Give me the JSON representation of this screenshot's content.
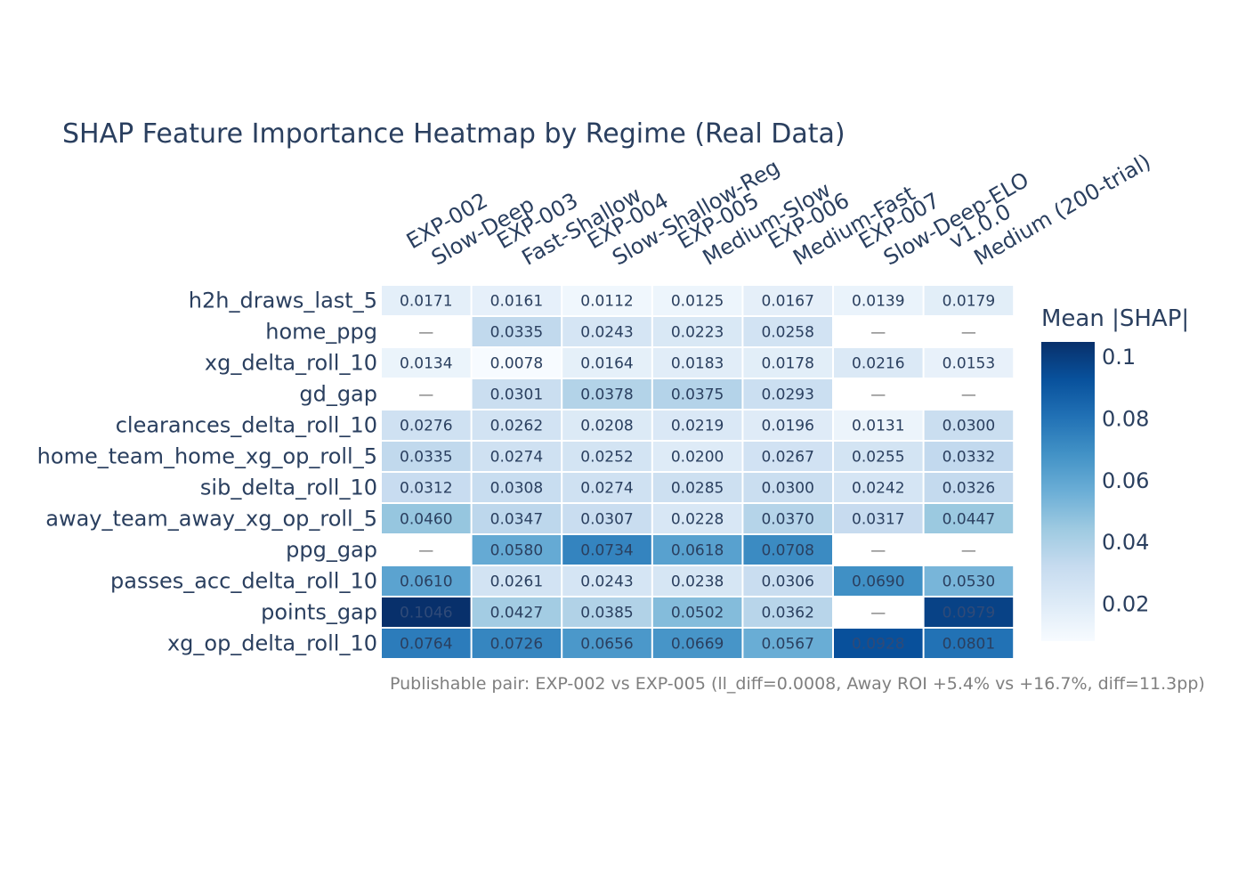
{
  "chart_data": {
    "type": "heatmap",
    "title": "SHAP Feature Importance Heatmap by Regime (Real Data)",
    "columns": [
      {
        "id": "EXP-002",
        "label": "Slow-Deep"
      },
      {
        "id": "EXP-003",
        "label": "Fast-Shallow"
      },
      {
        "id": "EXP-004",
        "label": "Slow-Shallow-Reg"
      },
      {
        "id": "EXP-005",
        "label": "Medium-Slow"
      },
      {
        "id": "EXP-006",
        "label": "Medium-Fast"
      },
      {
        "id": "EXP-007",
        "label": "Slow-Deep-ELO"
      },
      {
        "id": "v1.0.0",
        "label": "Medium (200-trial)"
      }
    ],
    "rows": [
      "h2h_draws_last_5",
      "home_ppg",
      "xg_delta_roll_10",
      "gd_gap",
      "clearances_delta_roll_10",
      "home_team_home_xg_op_roll_5",
      "sib_delta_roll_10",
      "away_team_away_xg_op_roll_5",
      "ppg_gap",
      "passes_acc_delta_roll_10",
      "points_gap",
      "xg_op_delta_roll_10"
    ],
    "values": [
      [
        0.0171,
        0.0161,
        0.0112,
        0.0125,
        0.0167,
        0.0139,
        0.0179
      ],
      [
        null,
        0.0335,
        0.0243,
        0.0223,
        0.0258,
        null,
        null
      ],
      [
        0.0134,
        0.0078,
        0.0164,
        0.0183,
        0.0178,
        0.0216,
        0.0153
      ],
      [
        null,
        0.0301,
        0.0378,
        0.0375,
        0.0293,
        null,
        null
      ],
      [
        0.0276,
        0.0262,
        0.0208,
        0.0219,
        0.0196,
        0.0131,
        0.03
      ],
      [
        0.0335,
        0.0274,
        0.0252,
        0.02,
        0.0267,
        0.0255,
        0.0332
      ],
      [
        0.0312,
        0.0308,
        0.0274,
        0.0285,
        0.03,
        0.0242,
        0.0326
      ],
      [
        0.046,
        0.0347,
        0.0307,
        0.0228,
        0.037,
        0.0317,
        0.0447
      ],
      [
        null,
        0.058,
        0.0734,
        0.0618,
        0.0708,
        null,
        null
      ],
      [
        0.061,
        0.0261,
        0.0243,
        0.0238,
        0.0306,
        0.069,
        0.053
      ],
      [
        0.1046,
        0.0427,
        0.0385,
        0.0502,
        0.0362,
        null,
        0.0979
      ],
      [
        0.0764,
        0.0726,
        0.0656,
        0.0669,
        0.0567,
        0.0928,
        0.0801
      ]
    ],
    "missing_label": "—",
    "colorbar": {
      "title": "Mean |SHAP|",
      "min": 0.0078,
      "max": 0.1046,
      "ticks": [
        0.02,
        0.04,
        0.06,
        0.08,
        0.1
      ],
      "tick_labels": [
        "0.02",
        "0.04",
        "0.06",
        "0.08",
        "0.1"
      ]
    },
    "colorscale": [
      "#f7fbff",
      "#deebf7",
      "#c6dbef",
      "#9ecae1",
      "#6baed6",
      "#4292c6",
      "#2171b5",
      "#08519c",
      "#08306b"
    ],
    "annotation": "Publishable pair: EXP-002 vs EXP-005 (ll_diff=0.0008, Away ROI +5.4% vs +16.7%, diff=11.3pp)"
  }
}
